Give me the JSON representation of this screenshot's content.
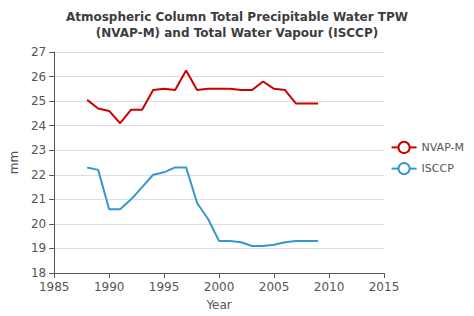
{
  "chart_data": {
    "type": "line",
    "title": "Atmospheric Column Total Precipitable Water TPW\n(NVAP-M) and Total Water Vapour (ISCCP)",
    "x_label": "Year",
    "y_label": "mm",
    "x": [
      1988,
      1989,
      1990,
      1991,
      1992,
      1993,
      1994,
      1995,
      1996,
      1997,
      1998,
      1999,
      2000,
      2001,
      2002,
      2003,
      2004,
      2005,
      2006,
      2007,
      2008,
      2009
    ],
    "series": [
      {
        "name": "NVAP-M",
        "color": "#cc0000",
        "values": [
          25.05,
          24.7,
          24.6,
          24.1,
          24.65,
          24.65,
          25.45,
          25.5,
          25.45,
          26.25,
          25.45,
          25.5,
          25.5,
          25.5,
          25.45,
          25.45,
          25.8,
          25.5,
          25.45,
          24.9,
          24.9,
          24.9
        ]
      },
      {
        "name": "ISCCP",
        "color": "#3399cc",
        "values": [
          22.3,
          22.2,
          20.6,
          20.6,
          21.0,
          21.5,
          22.0,
          22.1,
          22.3,
          22.3,
          20.85,
          20.2,
          19.3,
          19.3,
          19.25,
          19.1,
          19.1,
          19.15,
          19.25,
          19.3,
          19.3,
          19.3
        ]
      }
    ],
    "xlim": [
      1985,
      2015
    ],
    "xticks": [
      1985,
      1990,
      1995,
      2000,
      2005,
      2010,
      2015
    ],
    "ylim": [
      18,
      27
    ],
    "yticks": [
      18,
      19,
      20,
      21,
      22,
      23,
      24,
      25,
      26,
      27
    ],
    "grid": true,
    "legend": "right"
  }
}
